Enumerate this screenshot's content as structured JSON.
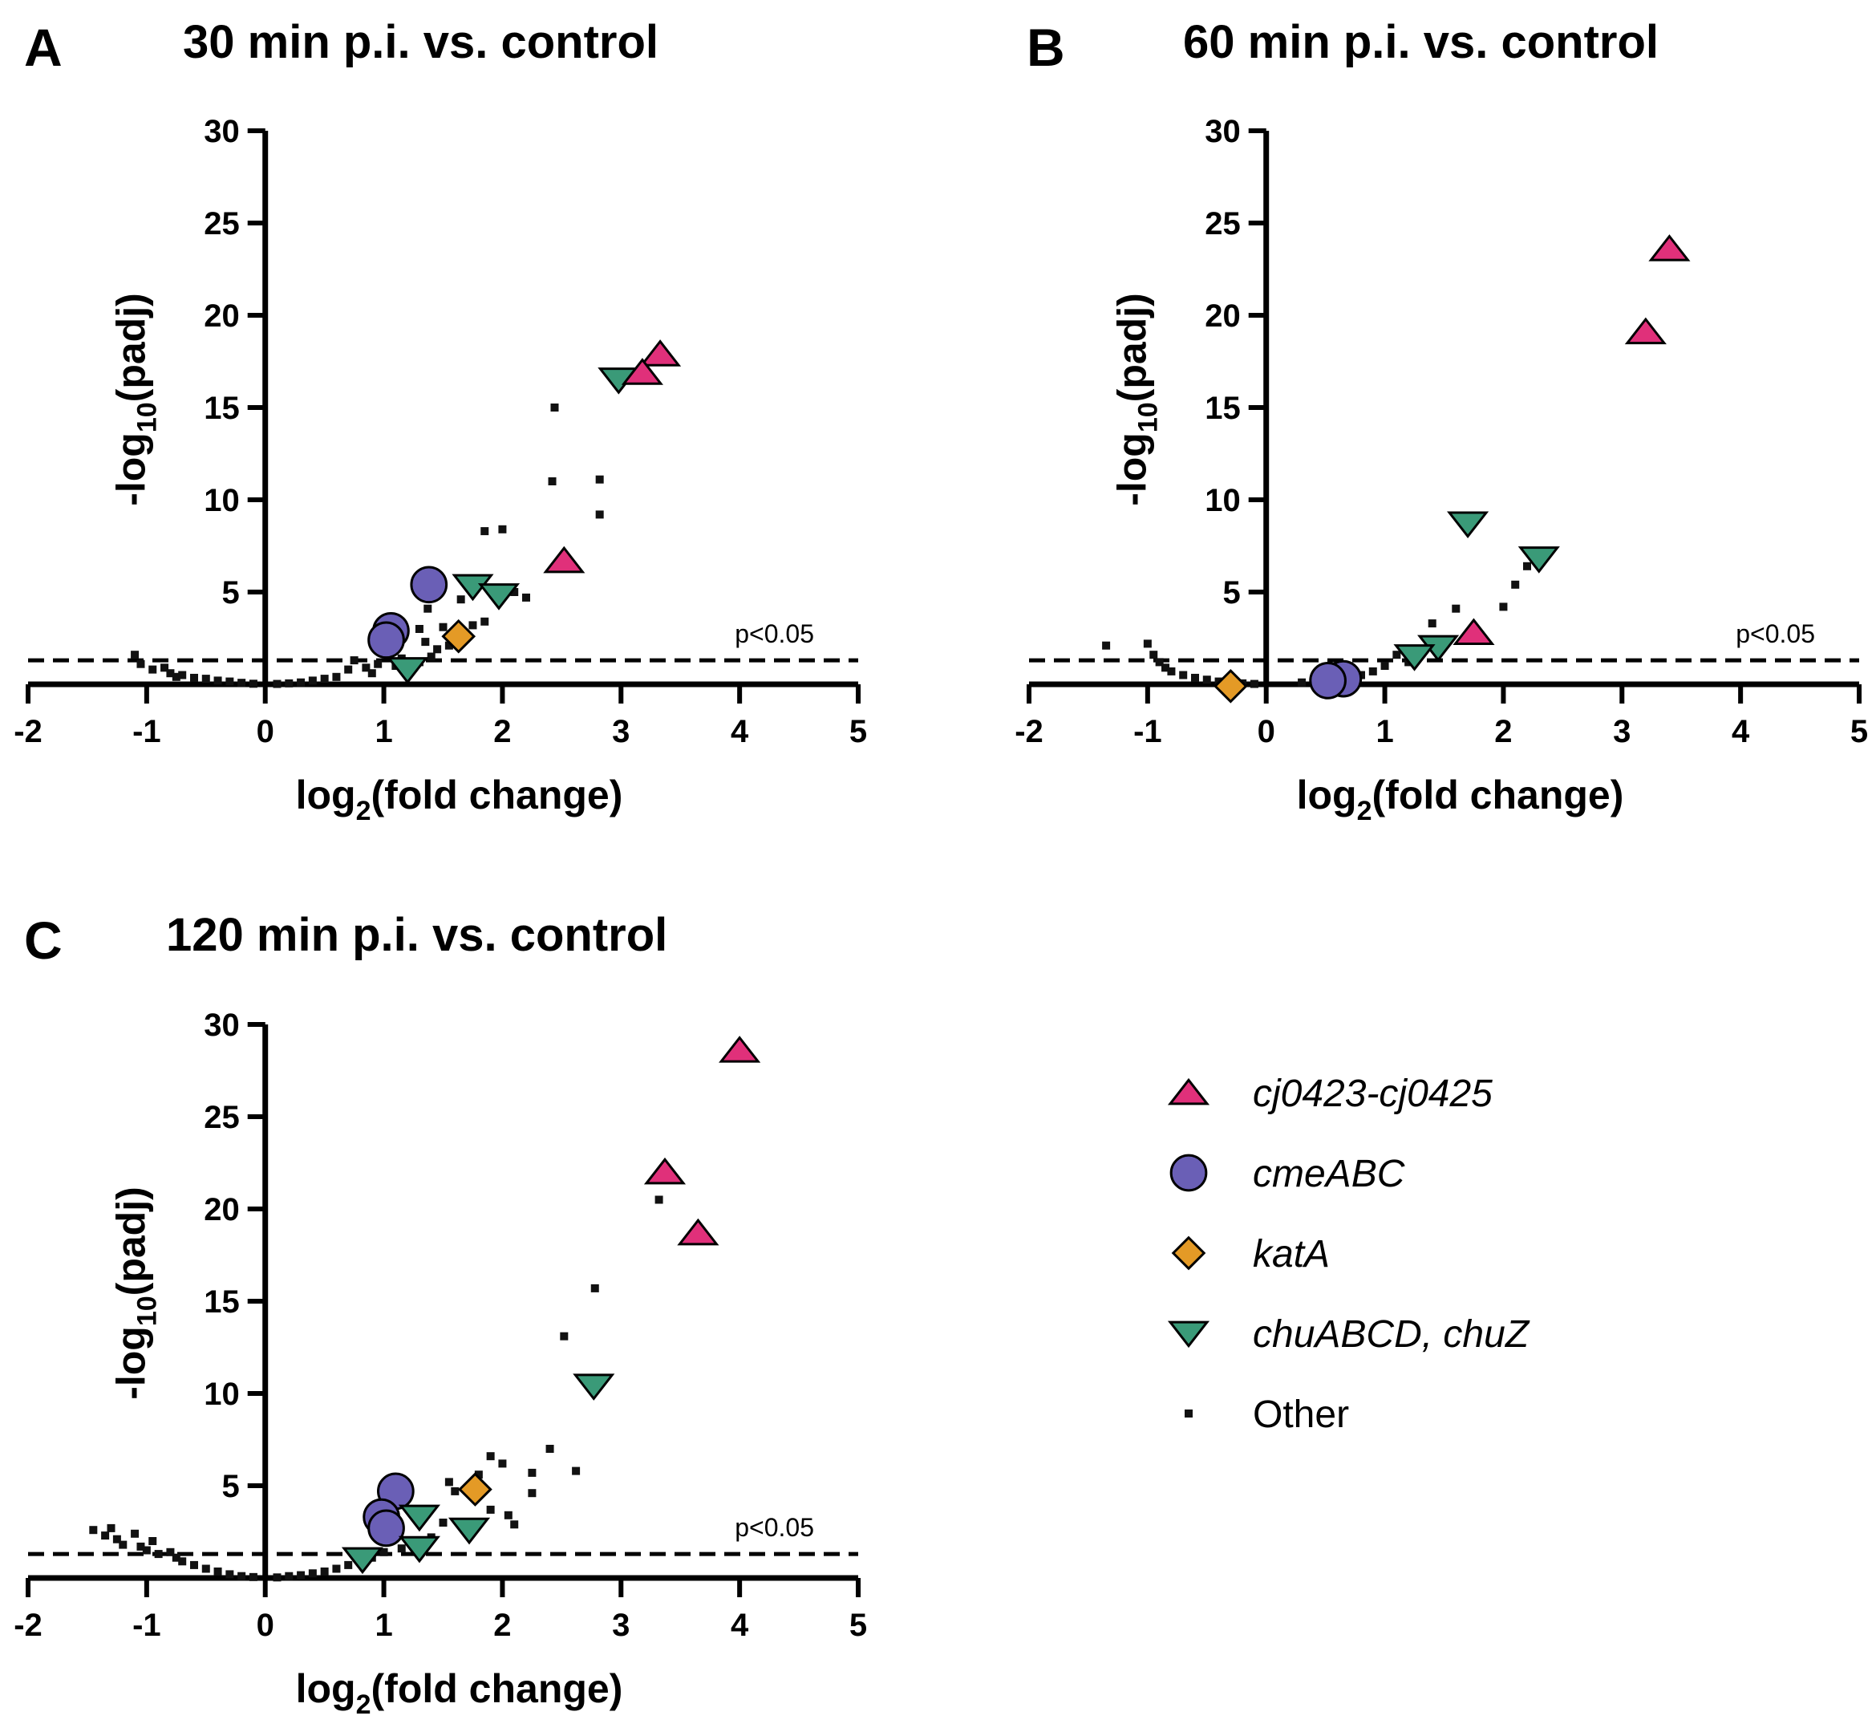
{
  "figure": {
    "legend": {
      "entries": [
        {
          "key": "cj",
          "label": "cj0423-cj0425",
          "italic": true
        },
        {
          "key": "cme",
          "label": "cmeABC",
          "italic": true
        },
        {
          "key": "kat",
          "label": "katA",
          "italic": true
        },
        {
          "key": "chu",
          "label": "chuABCD, chuZ",
          "italic": true
        },
        {
          "key": "other",
          "label": "Other",
          "italic": false
        }
      ]
    },
    "styles": {
      "cj": {
        "shape": "triangle-up",
        "color": "#e0307a"
      },
      "cme": {
        "shape": "circle",
        "color": "#6a5fb6"
      },
      "kat": {
        "shape": "diamond",
        "color": "#e49a26"
      },
      "chu": {
        "shape": "triangle-down",
        "color": "#3a9a78"
      },
      "other": {
        "shape": "square",
        "color": "#111111"
      }
    }
  },
  "chart_data": [
    {
      "panel": "A",
      "type": "scatter",
      "title": "30 min p.i. vs. control",
      "xlabel_main": "log",
      "xlabel_sub": "2",
      "xlabel_rest": "(fold change)",
      "ylabel_pre": "-log",
      "ylabel_sub": "10",
      "ylabel_rest": "(padj)",
      "xlim": [
        -2,
        5
      ],
      "ylim": [
        0,
        30
      ],
      "xticks": [
        -2,
        -1,
        0,
        1,
        2,
        3,
        4,
        5
      ],
      "yticks": [
        5,
        10,
        15,
        20,
        25,
        30
      ],
      "threshold": {
        "y": 1.3,
        "label": "p<0.05"
      },
      "series": [
        {
          "key": "cj",
          "name": "cj0423-cj0425",
          "points": [
            [
              3.33,
              17.9
            ],
            [
              3.18,
              16.9
            ],
            [
              2.52,
              6.7
            ]
          ]
        },
        {
          "key": "chu",
          "name": "chuABCD, chuZ",
          "points": [
            [
              2.98,
              16.5
            ],
            [
              1.75,
              5.3
            ],
            [
              1.97,
              4.8
            ],
            [
              1.2,
              0.8
            ]
          ]
        },
        {
          "key": "cme",
          "name": "cmeABC",
          "points": [
            [
              1.38,
              5.4
            ],
            [
              1.06,
              2.9
            ],
            [
              1.02,
              2.4
            ]
          ]
        },
        {
          "key": "kat",
          "name": "katA",
          "points": [
            [
              1.63,
              2.6
            ]
          ]
        },
        {
          "key": "other",
          "name": "Other",
          "points": [
            [
              2.44,
              15.0
            ],
            [
              2.42,
              11.0
            ],
            [
              2.82,
              11.1
            ],
            [
              2.82,
              9.2
            ],
            [
              1.85,
              8.3
            ],
            [
              2.0,
              8.4
            ],
            [
              1.37,
              4.1
            ],
            [
              1.65,
              4.6
            ],
            [
              2.1,
              5.0
            ],
            [
              2.2,
              4.7
            ],
            [
              1.3,
              3.0
            ],
            [
              1.5,
              3.1
            ],
            [
              1.75,
              3.2
            ],
            [
              1.85,
              3.4
            ],
            [
              1.35,
              2.3
            ],
            [
              1.45,
              1.9
            ],
            [
              1.55,
              2.1
            ],
            [
              1.4,
              1.5
            ],
            [
              1.3,
              1.2
            ],
            [
              0.7,
              0.8
            ],
            [
              0.85,
              0.9
            ],
            [
              0.75,
              1.3
            ],
            [
              0.9,
              0.6
            ],
            [
              0.6,
              0.4
            ],
            [
              0.5,
              0.3
            ],
            [
              0.4,
              0.2
            ],
            [
              0.3,
              0.1
            ],
            [
              0.2,
              0.05
            ],
            [
              0.1,
              0.02
            ],
            [
              1.1,
              1.0
            ],
            [
              1.15,
              1.4
            ],
            [
              0.95,
              1.1
            ],
            [
              -1.1,
              1.6
            ],
            [
              -1.05,
              1.1
            ],
            [
              -0.95,
              0.8
            ],
            [
              -0.85,
              0.9
            ],
            [
              -0.8,
              0.6
            ],
            [
              -0.75,
              0.4
            ],
            [
              -0.7,
              0.5
            ],
            [
              -0.6,
              0.35
            ],
            [
              -0.5,
              0.3
            ],
            [
              -0.4,
              0.2
            ],
            [
              -0.3,
              0.15
            ],
            [
              -0.2,
              0.08
            ],
            [
              -0.1,
              0.03
            ]
          ]
        }
      ]
    },
    {
      "panel": "B",
      "type": "scatter",
      "title": "60 min p.i. vs. control",
      "xlabel_main": "log",
      "xlabel_sub": "2",
      "xlabel_rest": "(fold change)",
      "ylabel_pre": "-log",
      "ylabel_sub": "10",
      "ylabel_rest": "(padj)",
      "xlim": [
        -2,
        5
      ],
      "ylim": [
        0,
        30
      ],
      "xticks": [
        -2,
        -1,
        0,
        1,
        2,
        3,
        4,
        5
      ],
      "yticks": [
        5,
        10,
        15,
        20,
        25,
        30
      ],
      "threshold": {
        "y": 1.3,
        "label": "p<0.05"
      },
      "series": [
        {
          "key": "cj",
          "name": "cj0423-cj0425",
          "points": [
            [
              3.4,
              23.6
            ],
            [
              3.2,
              19.1
            ],
            [
              1.75,
              2.8
            ]
          ]
        },
        {
          "key": "chu",
          "name": "chuABCD, chuZ",
          "points": [
            [
              1.7,
              8.7
            ],
            [
              2.3,
              6.8
            ],
            [
              1.45,
              2.0
            ],
            [
              1.25,
              1.5
            ]
          ]
        },
        {
          "key": "cme",
          "name": "cmeABC",
          "points": [
            [
              0.65,
              0.3
            ],
            [
              0.52,
              0.2
            ]
          ]
        },
        {
          "key": "kat",
          "name": "katA",
          "points": [
            [
              -0.3,
              -0.1
            ]
          ]
        },
        {
          "key": "other",
          "name": "Other",
          "points": [
            [
              2.2,
              6.4
            ],
            [
              2.1,
              5.4
            ],
            [
              2.0,
              4.2
            ],
            [
              1.6,
              4.1
            ],
            [
              1.4,
              3.3
            ],
            [
              1.1,
              1.6
            ],
            [
              1.2,
              1.2
            ],
            [
              1.0,
              1.0
            ],
            [
              0.9,
              0.7
            ],
            [
              0.8,
              0.5
            ],
            [
              0.7,
              0.4
            ],
            [
              0.4,
              0.15
            ],
            [
              0.3,
              0.1
            ],
            [
              -1.35,
              2.1
            ],
            [
              -1.0,
              2.2
            ],
            [
              -0.95,
              1.6
            ],
            [
              -0.9,
              1.2
            ],
            [
              -0.85,
              0.9
            ],
            [
              -0.8,
              0.7
            ],
            [
              -0.7,
              0.5
            ],
            [
              -0.6,
              0.35
            ],
            [
              -0.5,
              0.25
            ],
            [
              -0.4,
              0.15
            ],
            [
              -0.2,
              0.05
            ],
            [
              -0.1,
              0.02
            ]
          ]
        }
      ]
    },
    {
      "panel": "C",
      "type": "scatter",
      "title": "120 min p.i. vs. control",
      "xlabel_main": "log",
      "xlabel_sub": "2",
      "xlabel_rest": "(fold change)",
      "ylabel_pre": "-log",
      "ylabel_sub": "10",
      "ylabel_rest": "(padj)",
      "xlim": [
        -2,
        5
      ],
      "ylim": [
        0,
        30
      ],
      "xticks": [
        -2,
        -1,
        0,
        1,
        2,
        3,
        4,
        5
      ],
      "yticks": [
        5,
        10,
        15,
        20,
        25,
        30
      ],
      "threshold": {
        "y": 1.3,
        "label": "p<0.05"
      },
      "series": [
        {
          "key": "cj",
          "name": "cj0423-cj0425",
          "points": [
            [
              4.0,
              28.6
            ],
            [
              3.37,
              22.0
            ],
            [
              3.65,
              18.7
            ]
          ]
        },
        {
          "key": "chu",
          "name": "chuABCD, chuZ",
          "points": [
            [
              2.77,
              10.4
            ],
            [
              1.3,
              3.3
            ],
            [
              1.72,
              2.6
            ],
            [
              1.3,
              1.6
            ],
            [
              0.82,
              1.0
            ]
          ]
        },
        {
          "key": "cme",
          "name": "cmeABC",
          "points": [
            [
              1.1,
              4.7
            ],
            [
              0.98,
              3.3
            ],
            [
              1.02,
              2.7
            ]
          ]
        },
        {
          "key": "kat",
          "name": "katA",
          "points": [
            [
              1.77,
              4.8
            ]
          ]
        },
        {
          "key": "other",
          "name": "Other",
          "points": [
            [
              3.32,
              20.5
            ],
            [
              2.78,
              15.7
            ],
            [
              2.52,
              13.1
            ],
            [
              2.4,
              7.0
            ],
            [
              2.62,
              5.8
            ],
            [
              1.9,
              6.6
            ],
            [
              2.0,
              6.2
            ],
            [
              2.25,
              5.7
            ],
            [
              2.25,
              4.6
            ],
            [
              1.55,
              5.2
            ],
            [
              1.6,
              4.7
            ],
            [
              1.8,
              5.6
            ],
            [
              2.05,
              3.4
            ],
            [
              2.1,
              2.9
            ],
            [
              1.9,
              3.7
            ],
            [
              1.5,
              3.0
            ],
            [
              1.4,
              2.2
            ],
            [
              1.25,
              2.0
            ],
            [
              1.15,
              1.6
            ],
            [
              1.0,
              1.4
            ],
            [
              0.9,
              1.1
            ],
            [
              0.8,
              0.9
            ],
            [
              0.7,
              0.7
            ],
            [
              0.6,
              0.5
            ],
            [
              0.5,
              0.35
            ],
            [
              0.4,
              0.25
            ],
            [
              0.3,
              0.15
            ],
            [
              0.2,
              0.1
            ],
            [
              0.1,
              0.03
            ],
            [
              -1.45,
              2.6
            ],
            [
              -1.35,
              2.3
            ],
            [
              -1.3,
              2.7
            ],
            [
              -1.25,
              2.1
            ],
            [
              -1.2,
              1.8
            ],
            [
              -1.1,
              2.4
            ],
            [
              -1.05,
              1.7
            ],
            [
              -1.0,
              1.5
            ],
            [
              -0.95,
              2.0
            ],
            [
              -0.9,
              1.3
            ],
            [
              -0.8,
              1.4
            ],
            [
              -0.75,
              1.1
            ],
            [
              -0.7,
              0.9
            ],
            [
              -0.6,
              0.7
            ],
            [
              -0.5,
              0.5
            ],
            [
              -0.4,
              0.35
            ],
            [
              -0.3,
              0.2
            ],
            [
              -0.2,
              0.1
            ],
            [
              -0.1,
              0.05
            ]
          ]
        }
      ]
    }
  ]
}
